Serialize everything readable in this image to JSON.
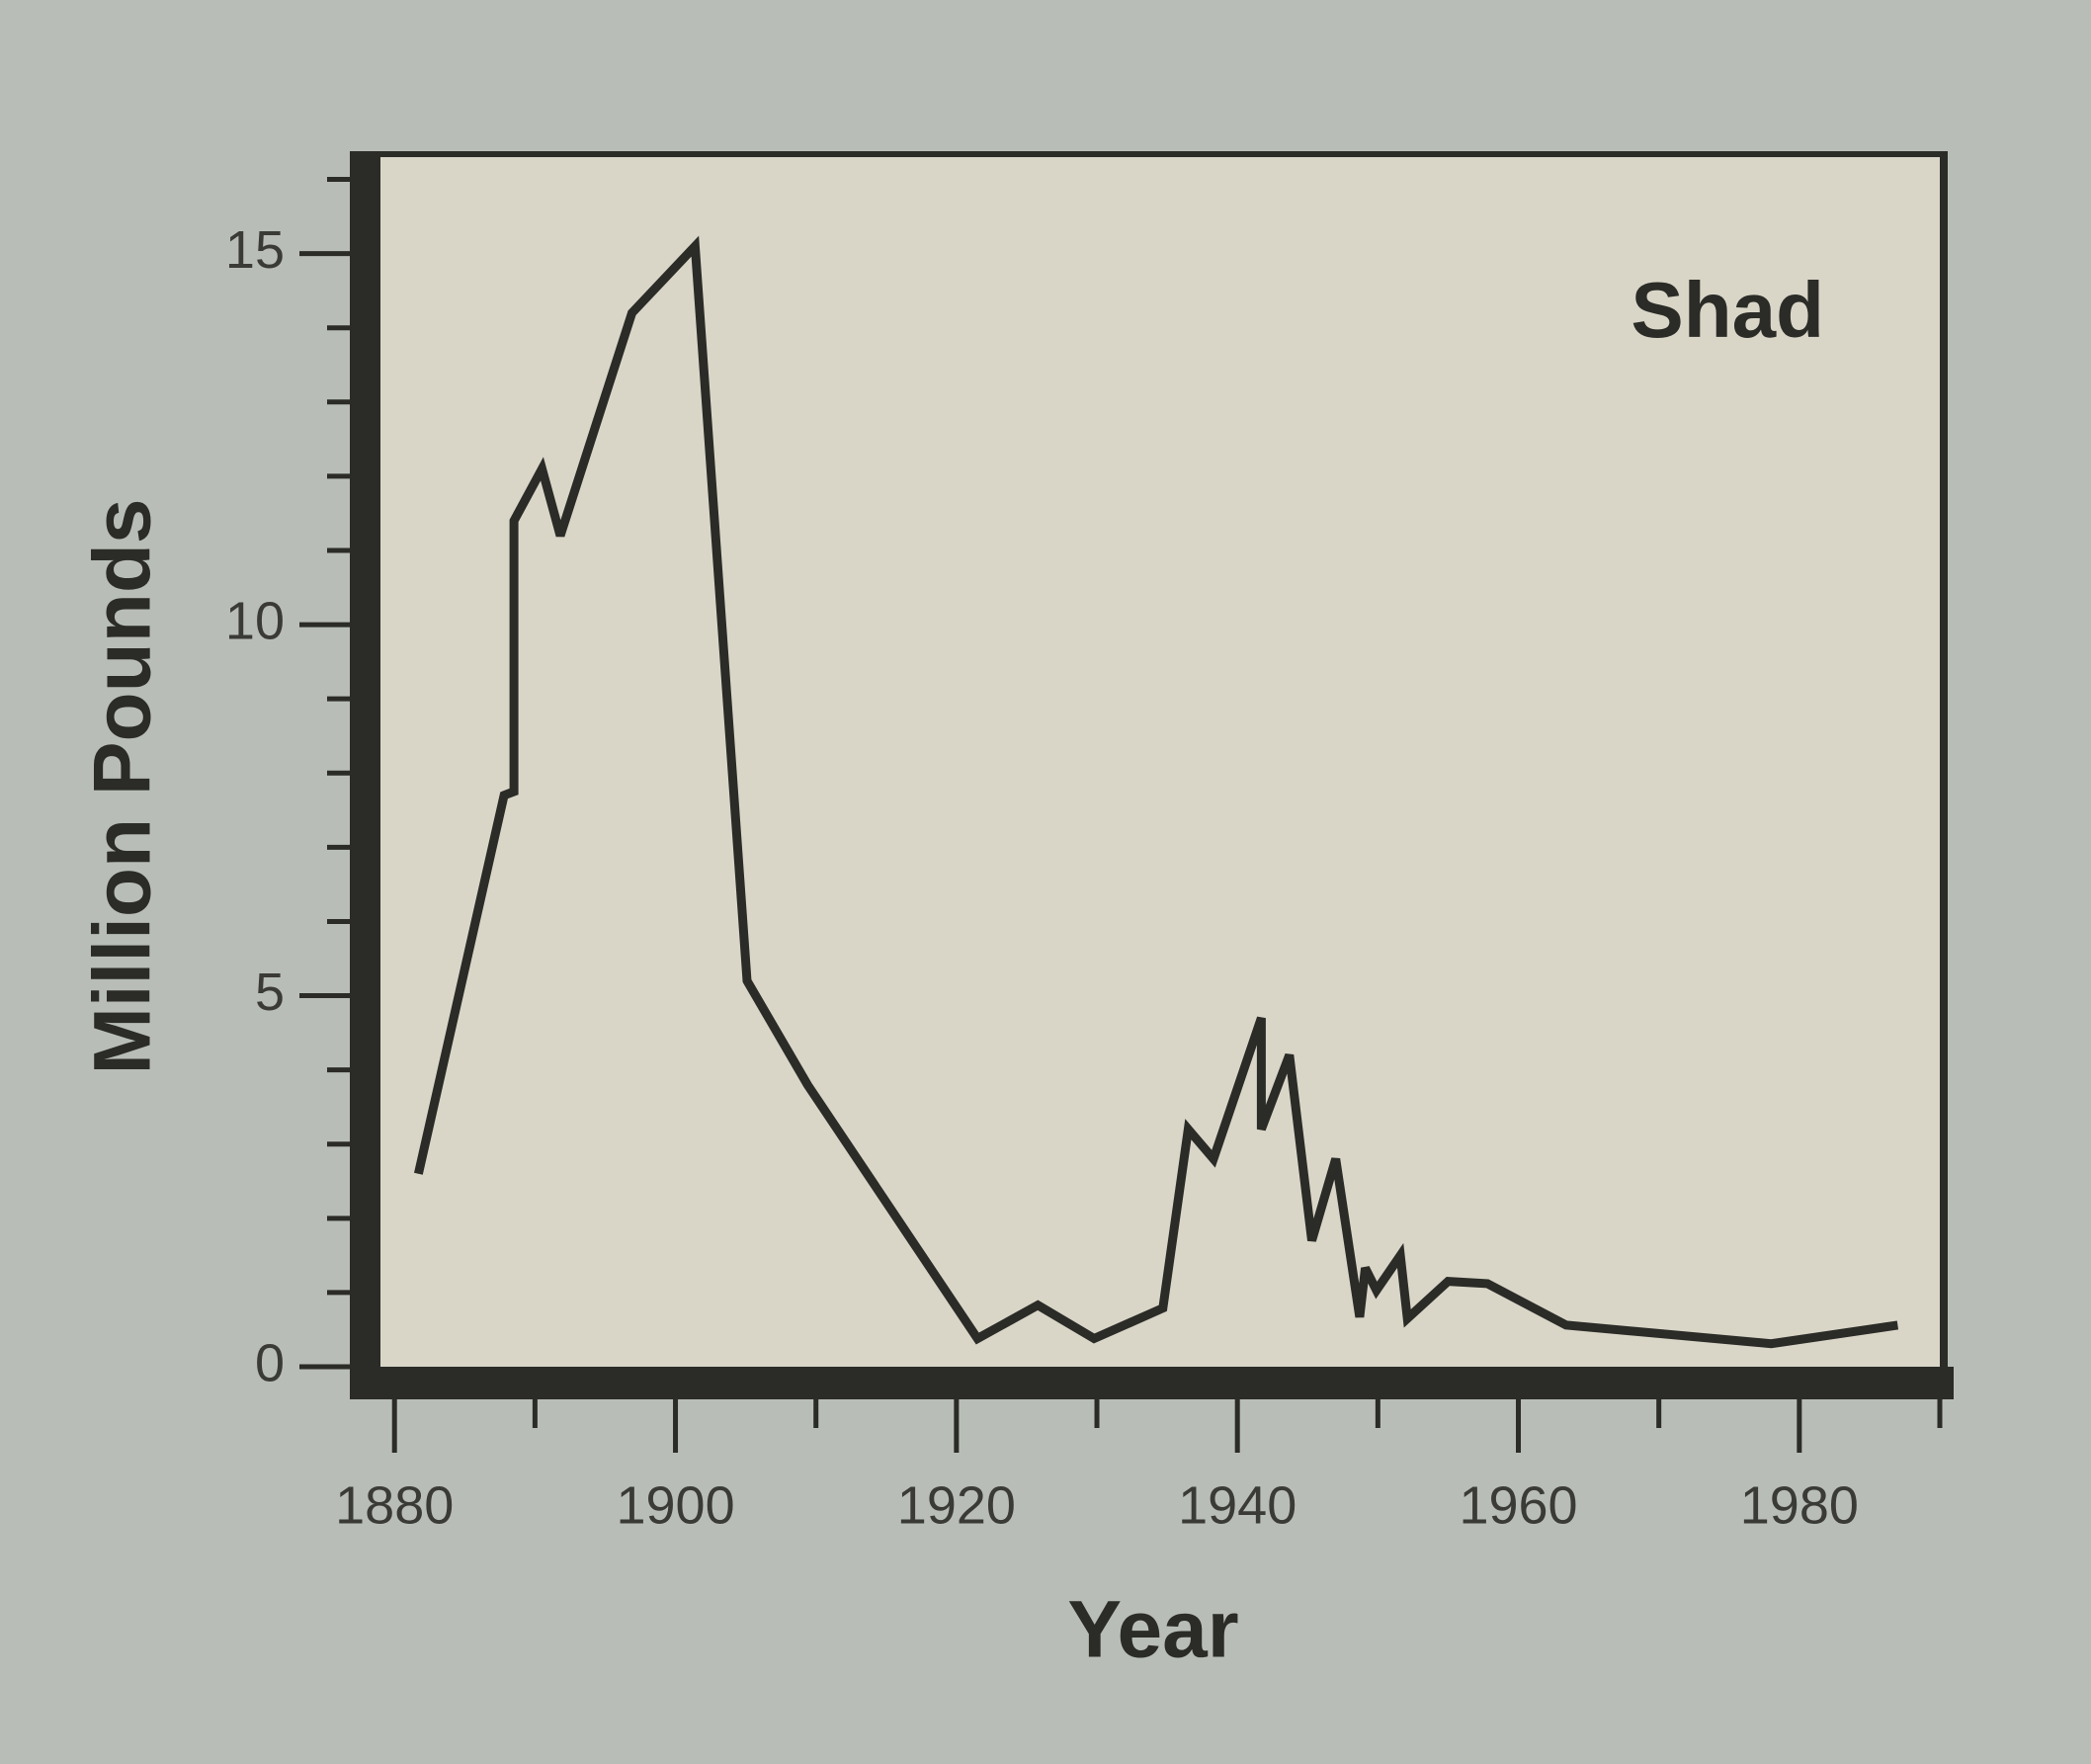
{
  "chart_data": {
    "type": "line",
    "title": "Shad",
    "xlabel": "Year",
    "ylabel": "Million Pounds",
    "x": [
      1881.7,
      1887.8,
      1888.5,
      1888.5,
      1890.5,
      1891.8,
      1896.9,
      1901.4,
      1905.1,
      1909.4,
      1921.5,
      1925.8,
      1929.8,
      1934.7,
      1936.5,
      1938.3,
      1941.7,
      1941.7,
      1943.7,
      1945.3,
      1947.0,
      1948.7,
      1949.1,
      1949.9,
      1951.6,
      1952.1,
      1955.0,
      1957.8,
      1963.4,
      1978.0,
      1987.0
    ],
    "values": [
      2.6,
      7.7,
      7.75,
      11.4,
      12.1,
      11.2,
      14.2,
      15.1,
      5.2,
      3.8,
      0.38,
      0.83,
      0.38,
      0.79,
      3.2,
      2.8,
      4.7,
      3.2,
      4.2,
      1.7,
      2.8,
      0.67,
      1.33,
      1.03,
      1.5,
      0.65,
      1.15,
      1.12,
      0.56,
      0.31,
      0.56
    ],
    "color": "#2b2b27",
    "xlim": [
      1879,
      1990
    ],
    "xticks": [
      1880,
      1900,
      1920,
      1940,
      1960,
      1980
    ],
    "xminorticks": [
      1890,
      1910,
      1930,
      1950,
      1970,
      1990
    ],
    "ylim": [
      0,
      16.3
    ],
    "yticks": [
      0,
      5,
      10,
      15
    ],
    "yminorticks": [
      1,
      2,
      3,
      4,
      6,
      7,
      8,
      9,
      11,
      12,
      13,
      14,
      16
    ],
    "grid": false
  }
}
